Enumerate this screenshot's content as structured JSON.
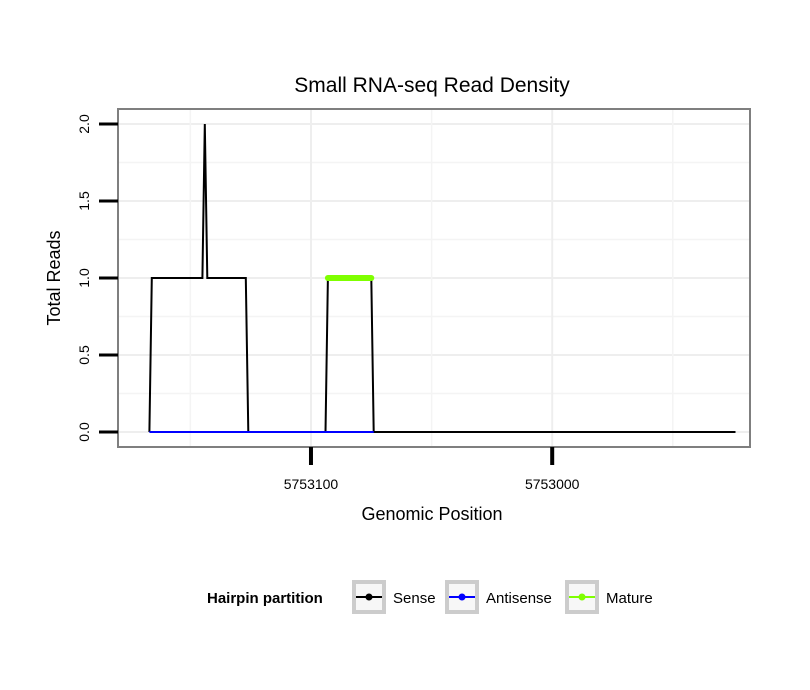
{
  "chart_data": {
    "type": "line",
    "title": "Small RNA-seq Read Density",
    "xlabel": "Genomic Position",
    "ylabel": "Total Reads",
    "x_reversed": true,
    "xlim": [
      5752918,
      5753180
    ],
    "ylim": [
      0,
      2
    ],
    "x_ticks": [
      5753100,
      5753000
    ],
    "x_tick_labels": [
      "5753100",
      "5753000"
    ],
    "y_ticks": [
      0,
      0.5,
      1,
      1.5,
      2
    ],
    "y_tick_labels": [
      "0.0",
      "0.5",
      "1.0",
      "1.5",
      "2.0"
    ],
    "grid": true,
    "legend": {
      "title": "Hairpin partition",
      "position": "bottom",
      "entries": [
        {
          "name": "Sense",
          "color": "#000000"
        },
        {
          "name": "Antisense",
          "color": "#0000ff"
        },
        {
          "name": "Mature",
          "color": "#7fff00"
        }
      ]
    },
    "series": [
      {
        "name": "Sense",
        "color": "#000000",
        "x": [
          5753167,
          5753166,
          5753145,
          5753144,
          5753143,
          5753142,
          5753127,
          5753126,
          5753094,
          5753093,
          5753075,
          5753074,
          5752924
        ],
        "y": [
          0,
          1,
          1,
          2,
          1,
          1,
          1,
          0,
          0,
          1,
          1,
          0,
          0
        ]
      },
      {
        "name": "Antisense",
        "color": "#0000ff",
        "x": [
          5753167,
          5753074
        ],
        "y": [
          0,
          0
        ]
      },
      {
        "name": "Mature",
        "color": "#7fff00",
        "x": [
          5753093,
          5753075
        ],
        "y": [
          1,
          1
        ]
      }
    ]
  }
}
